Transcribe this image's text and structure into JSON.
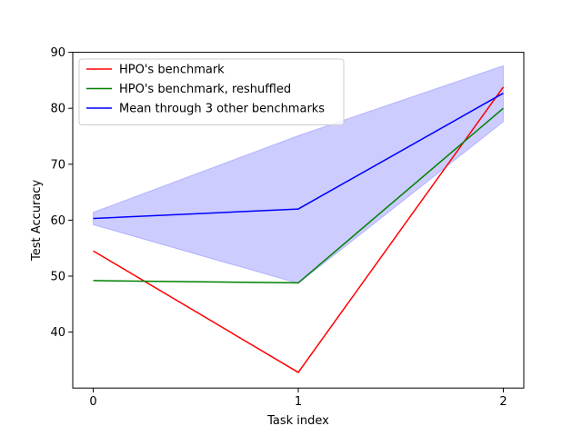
{
  "chart_data": {
    "type": "line",
    "xlabel": "Task index",
    "ylabel": "Test Accuracy",
    "x": [
      0,
      1,
      2
    ],
    "xticks": [
      0,
      1,
      2
    ],
    "xlim": [
      -0.1,
      2.1
    ],
    "yticks": [
      40,
      50,
      60,
      70,
      80,
      90
    ],
    "ylim": [
      30,
      90
    ],
    "grid": false,
    "legend_position": "top-left",
    "series": [
      {
        "name": "HPO's benchmark",
        "values": [
          54.5,
          32.8,
          83.8
        ],
        "color": "#ff0000"
      },
      {
        "name": "HPO's benchmark, reshuffled",
        "values": [
          49.2,
          48.8,
          80.0
        ],
        "color": "#008000"
      },
      {
        "name": "Mean through 3 other benchmarks",
        "values": [
          60.3,
          62.0,
          82.7
        ],
        "color": "#0000ff",
        "band_lower": [
          59.2,
          48.7,
          77.6
        ],
        "band_upper": [
          61.4,
          75.1,
          87.6
        ],
        "band_color": "#0000ff"
      }
    ]
  }
}
